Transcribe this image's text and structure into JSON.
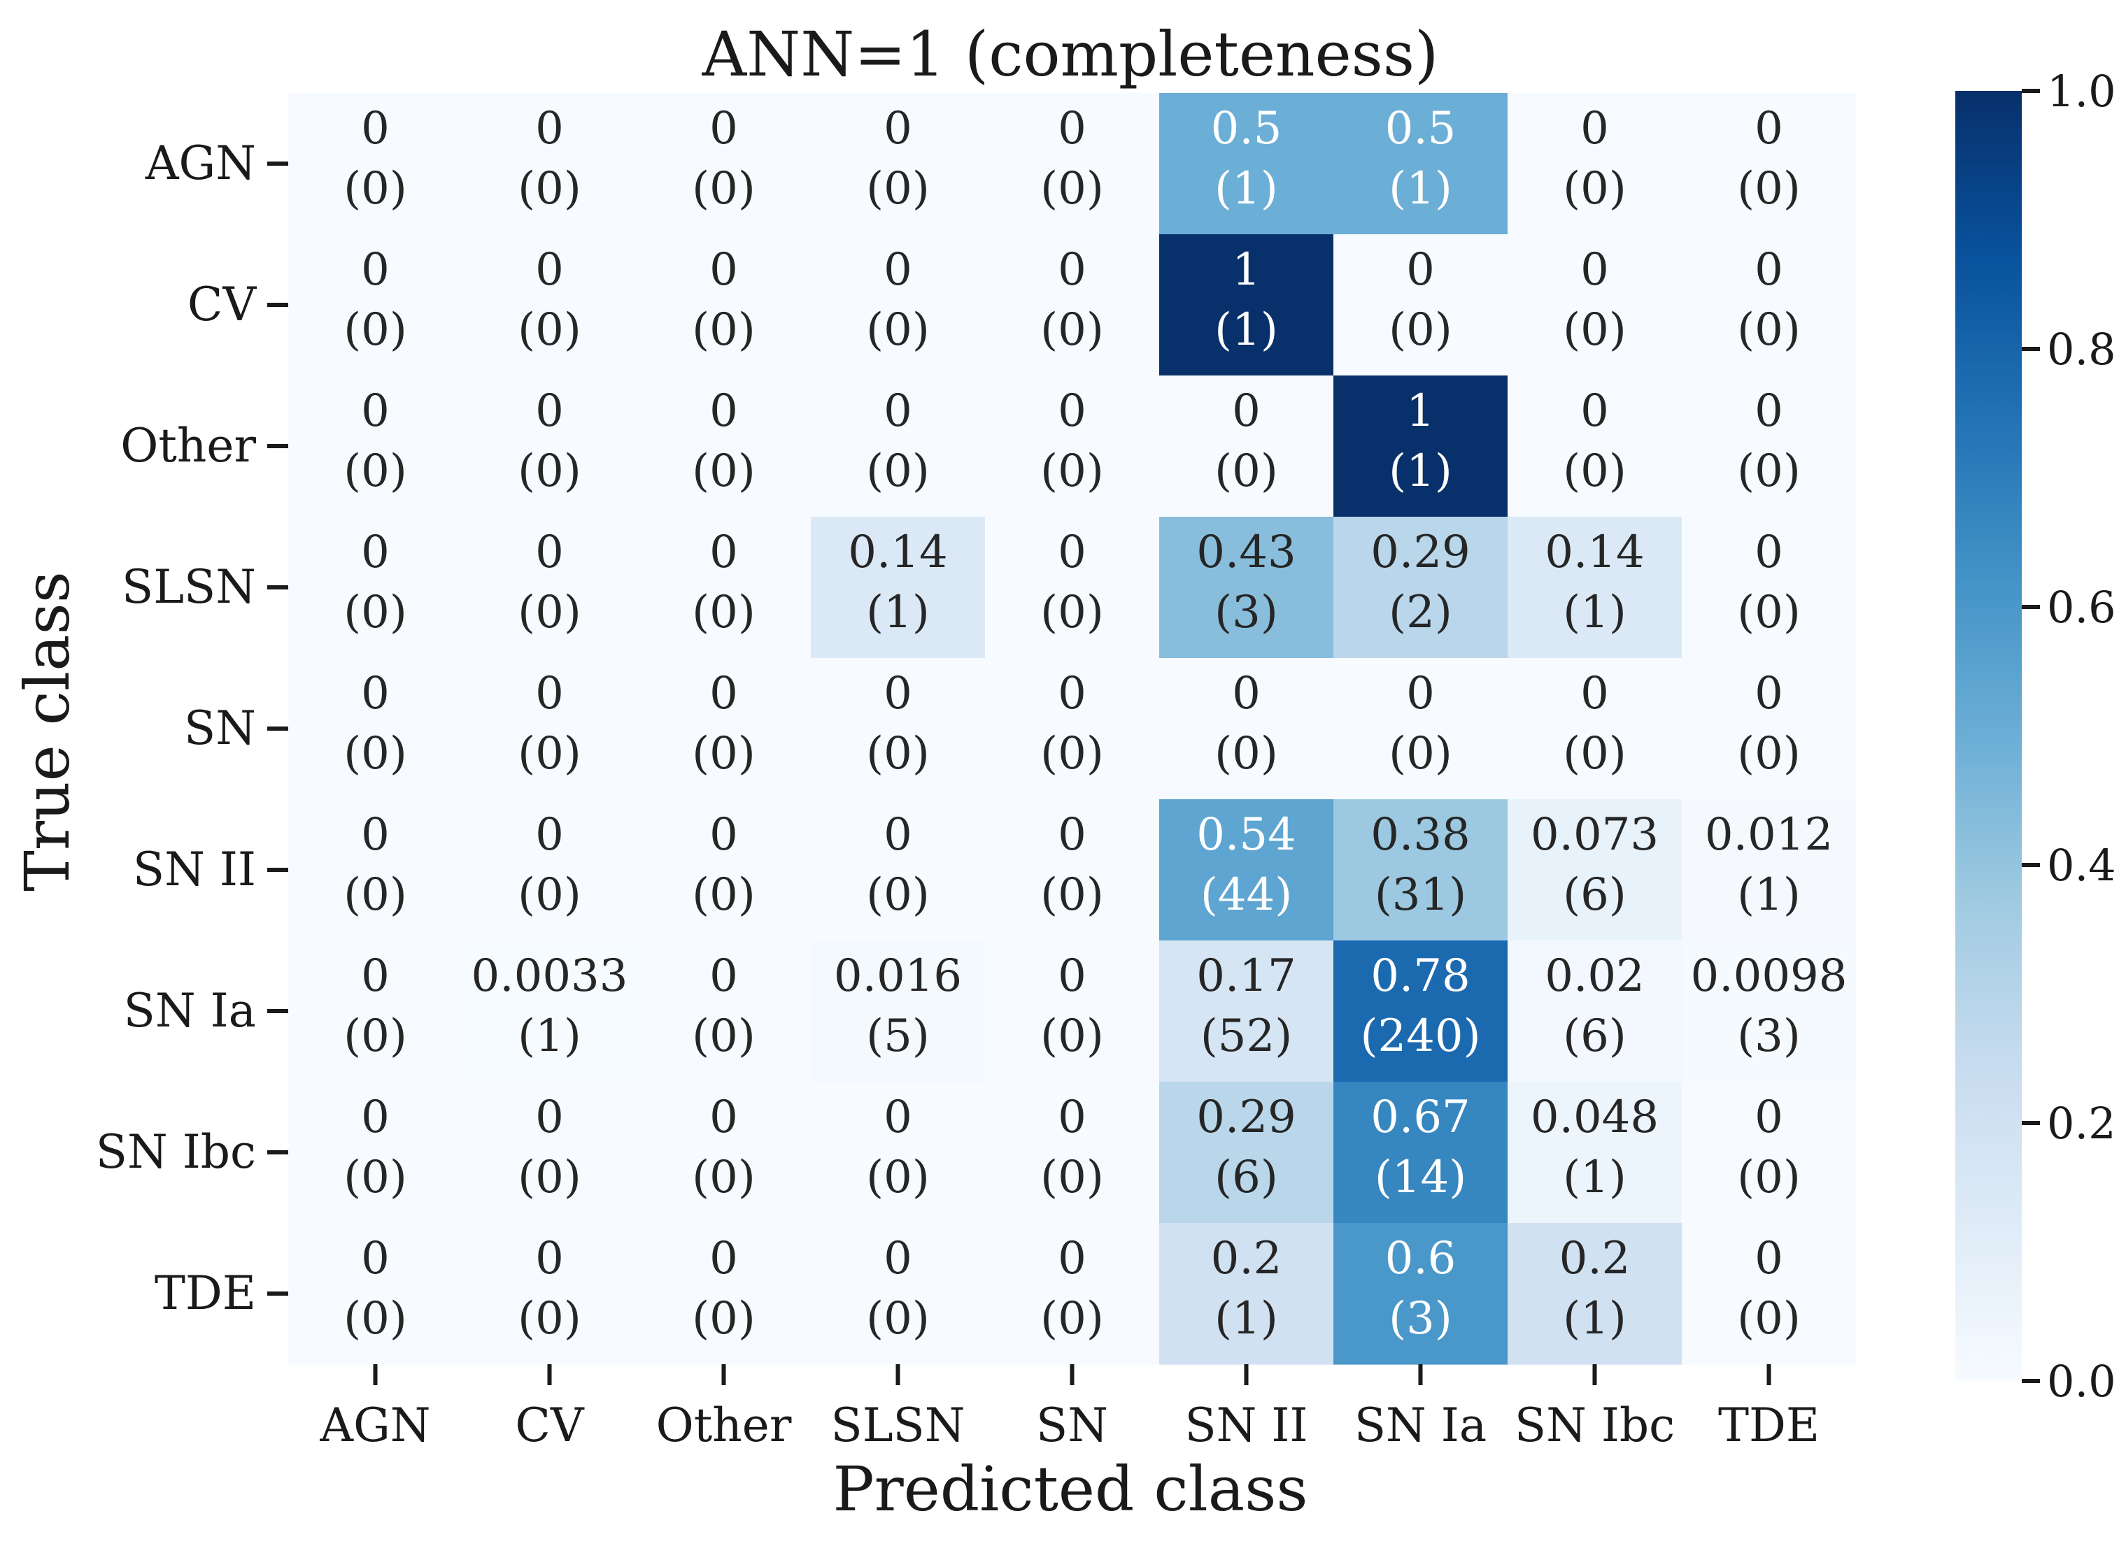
{
  "chart_data": {
    "type": "heatmap",
    "title": "ANN=1 (completeness)",
    "xlabel": "Predicted class",
    "ylabel": "True class",
    "x_categories": [
      "AGN",
      "CV",
      "Other",
      "SLSN",
      "SN",
      "SN II",
      "SN Ia",
      "SN Ibc",
      "TDE"
    ],
    "y_categories": [
      "AGN",
      "CV",
      "Other",
      "SLSN",
      "SN",
      "SN II",
      "SN Ia",
      "SN Ibc",
      "TDE"
    ],
    "value_labels": [
      [
        "0",
        "0",
        "0",
        "0",
        "0",
        "0.5",
        "0.5",
        "0",
        "0"
      ],
      [
        "0",
        "0",
        "0",
        "0",
        "0",
        "1",
        "0",
        "0",
        "0"
      ],
      [
        "0",
        "0",
        "0",
        "0",
        "0",
        "0",
        "1",
        "0",
        "0"
      ],
      [
        "0",
        "0",
        "0",
        "0.14",
        "0",
        "0.43",
        "0.29",
        "0.14",
        "0"
      ],
      [
        "0",
        "0",
        "0",
        "0",
        "0",
        "0",
        "0",
        "0",
        "0"
      ],
      [
        "0",
        "0",
        "0",
        "0",
        "0",
        "0.54",
        "0.38",
        "0.073",
        "0.012"
      ],
      [
        "0",
        "0.0033",
        "0",
        "0.016",
        "0",
        "0.17",
        "0.78",
        "0.02",
        "0.0098"
      ],
      [
        "0",
        "0",
        "0",
        "0",
        "0",
        "0.29",
        "0.67",
        "0.048",
        "0"
      ],
      [
        "0",
        "0",
        "0",
        "0",
        "0",
        "0.2",
        "0.6",
        "0.2",
        "0"
      ]
    ],
    "count_labels": [
      [
        "(0)",
        "(0)",
        "(0)",
        "(0)",
        "(0)",
        "(1)",
        "(1)",
        "(0)",
        "(0)"
      ],
      [
        "(0)",
        "(0)",
        "(0)",
        "(0)",
        "(0)",
        "(1)",
        "(0)",
        "(0)",
        "(0)"
      ],
      [
        "(0)",
        "(0)",
        "(0)",
        "(0)",
        "(0)",
        "(0)",
        "(1)",
        "(0)",
        "(0)"
      ],
      [
        "(0)",
        "(0)",
        "(0)",
        "(1)",
        "(0)",
        "(3)",
        "(2)",
        "(1)",
        "(0)"
      ],
      [
        "(0)",
        "(0)",
        "(0)",
        "(0)",
        "(0)",
        "(0)",
        "(0)",
        "(0)",
        "(0)"
      ],
      [
        "(0)",
        "(0)",
        "(0)",
        "(0)",
        "(0)",
        "(44)",
        "(31)",
        "(6)",
        "(1)"
      ],
      [
        "(0)",
        "(1)",
        "(0)",
        "(5)",
        "(0)",
        "(52)",
        "(240)",
        "(6)",
        "(3)"
      ],
      [
        "(0)",
        "(0)",
        "(0)",
        "(0)",
        "(0)",
        "(6)",
        "(14)",
        "(1)",
        "(0)"
      ],
      [
        "(0)",
        "(0)",
        "(0)",
        "(0)",
        "(0)",
        "(1)",
        "(3)",
        "(1)",
        "(0)"
      ]
    ],
    "colorbar": {
      "range": [
        0,
        1
      ],
      "ticks": [
        0,
        0.2,
        0.4,
        0.6,
        0.8,
        1.0
      ],
      "tick_labels": [
        "0.0",
        "0.2",
        "0.4",
        "0.6",
        "0.8",
        "1.0"
      ],
      "colormap": "Blues",
      "color_low": "#f7fbff",
      "color_high": "#08306b"
    },
    "grid": false,
    "legend": "colorbar-right"
  }
}
